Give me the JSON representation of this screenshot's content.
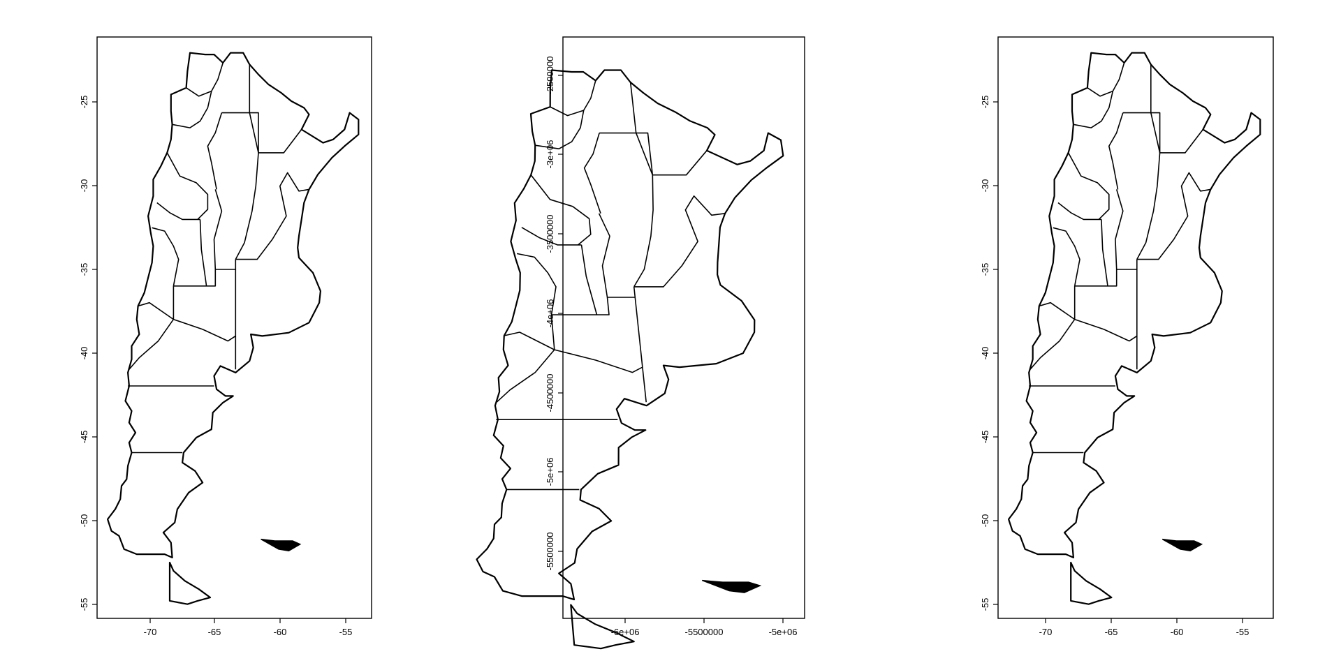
{
  "chart_data": [
    {
      "type": "map",
      "title": "",
      "xlabel": "",
      "ylabel": "",
      "x_ticks": [
        "-70",
        "-65",
        "-60",
        "-55"
      ],
      "y_ticks": [
        "-25",
        "-30",
        "-35",
        "-40",
        "-45",
        "-50",
        "-55"
      ],
      "xlim": [
        -74,
        -53
      ],
      "ylim": [
        -55.7,
        -21.3
      ]
    },
    {
      "type": "map",
      "title": "",
      "xlabel": "",
      "ylabel": "",
      "x_ticks": [
        "-6e+06",
        "-5500000",
        "-5e+06"
      ],
      "y_ticks": [
        "-2500000",
        "-3e+06",
        "-3500000",
        "-4e+06",
        "-4500000",
        "-5e+06",
        "-5500000"
      ],
      "xlim": [
        -6150000,
        -4890000
      ],
      "ylim": [
        -5880000,
        -2240000
      ]
    },
    {
      "type": "map",
      "title": "",
      "xlabel": "",
      "ylabel": "",
      "x_ticks": [
        "-70",
        "-65",
        "-60",
        "-55"
      ],
      "y_ticks": [
        "-25",
        "-30",
        "-35",
        "-40",
        "-45",
        "-50",
        "-55"
      ],
      "xlim": [
        -74,
        -53
      ],
      "ylim": [
        -55.7,
        -21.3
      ]
    }
  ]
}
